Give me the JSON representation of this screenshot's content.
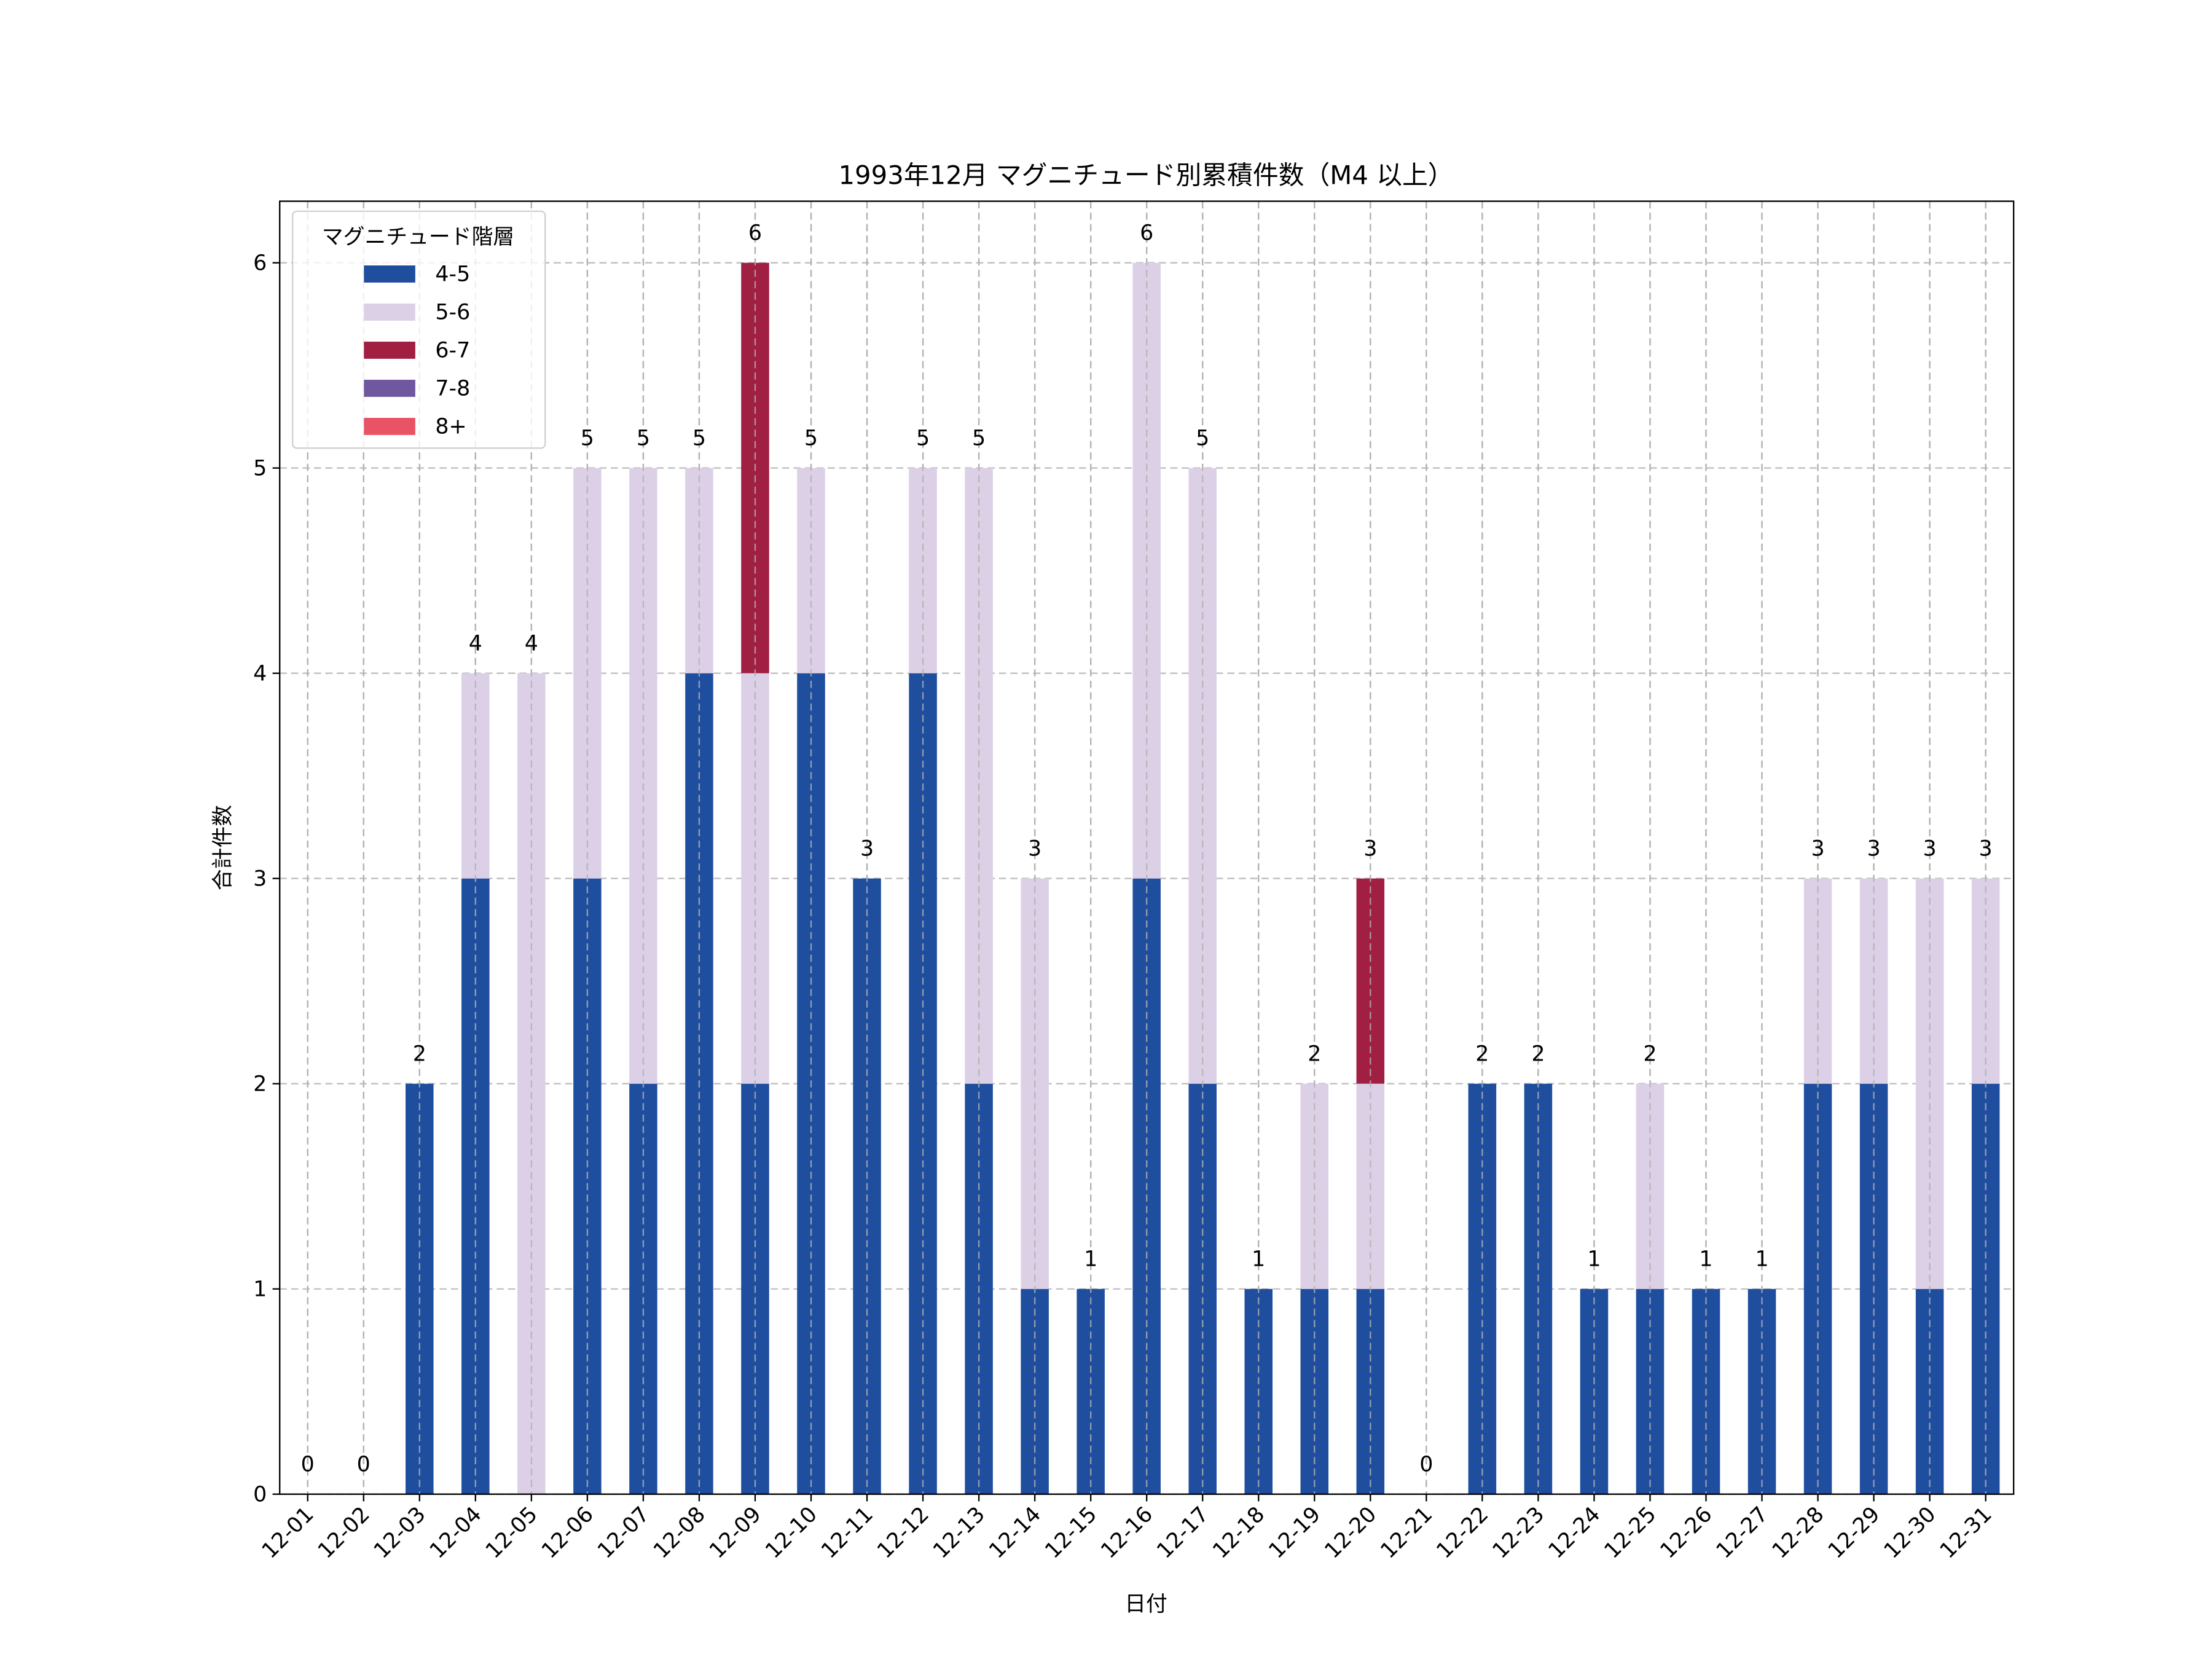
{
  "chart_data": {
    "type": "bar",
    "stacked": true,
    "title": "1993年12月 マグニチュード別累積件数（M4 以上）",
    "xlabel": "日付",
    "ylabel": "合計件数",
    "ylim": [
      0,
      6.3
    ],
    "yticks": [
      0,
      1,
      2,
      3,
      4,
      5,
      6
    ],
    "grid": true,
    "legend": {
      "title": "マグニチュード階層",
      "placement": "top-left"
    },
    "categories": [
      "12-01",
      "12-02",
      "12-03",
      "12-04",
      "12-05",
      "12-06",
      "12-07",
      "12-08",
      "12-09",
      "12-10",
      "12-11",
      "12-12",
      "12-13",
      "12-14",
      "12-15",
      "12-16",
      "12-17",
      "12-18",
      "12-19",
      "12-20",
      "12-21",
      "12-22",
      "12-23",
      "12-24",
      "12-25",
      "12-26",
      "12-27",
      "12-28",
      "12-29",
      "12-30",
      "12-31"
    ],
    "series": [
      {
        "name": "4-5",
        "color": "#1f4e9e",
        "values": [
          0,
          0,
          2,
          3,
          0,
          3,
          2,
          4,
          2,
          4,
          3,
          4,
          2,
          1,
          1,
          3,
          2,
          1,
          1,
          1,
          0,
          2,
          2,
          1,
          1,
          1,
          1,
          2,
          2,
          1,
          2
        ]
      },
      {
        "name": "5-6",
        "color": "#dcd0e6",
        "values": [
          0,
          0,
          0,
          1,
          4,
          2,
          3,
          1,
          2,
          1,
          0,
          1,
          3,
          2,
          0,
          3,
          3,
          0,
          1,
          1,
          0,
          0,
          0,
          0,
          1,
          0,
          0,
          1,
          1,
          2,
          1
        ]
      },
      {
        "name": "6-7",
        "color": "#a01f42",
        "values": [
          0,
          0,
          0,
          0,
          0,
          0,
          0,
          0,
          2,
          0,
          0,
          0,
          0,
          0,
          0,
          0,
          0,
          0,
          0,
          1,
          0,
          0,
          0,
          0,
          0,
          0,
          0,
          0,
          0,
          0,
          0
        ]
      },
      {
        "name": "7-8",
        "color": "#7058a0",
        "values": [
          0,
          0,
          0,
          0,
          0,
          0,
          0,
          0,
          0,
          0,
          0,
          0,
          0,
          0,
          0,
          0,
          0,
          0,
          0,
          0,
          0,
          0,
          0,
          0,
          0,
          0,
          0,
          0,
          0,
          0,
          0
        ]
      },
      {
        "name": "8+",
        "color": "#e85466",
        "values": [
          0,
          0,
          0,
          0,
          0,
          0,
          0,
          0,
          0,
          0,
          0,
          0,
          0,
          0,
          0,
          0,
          0,
          0,
          0,
          0,
          0,
          0,
          0,
          0,
          0,
          0,
          0,
          0,
          0,
          0,
          0
        ]
      }
    ],
    "totals": [
      0,
      0,
      2,
      4,
      4,
      5,
      5,
      5,
      6,
      5,
      3,
      5,
      5,
      3,
      1,
      6,
      5,
      1,
      2,
      3,
      0,
      2,
      2,
      1,
      2,
      1,
      1,
      3,
      3,
      3,
      3
    ]
  }
}
